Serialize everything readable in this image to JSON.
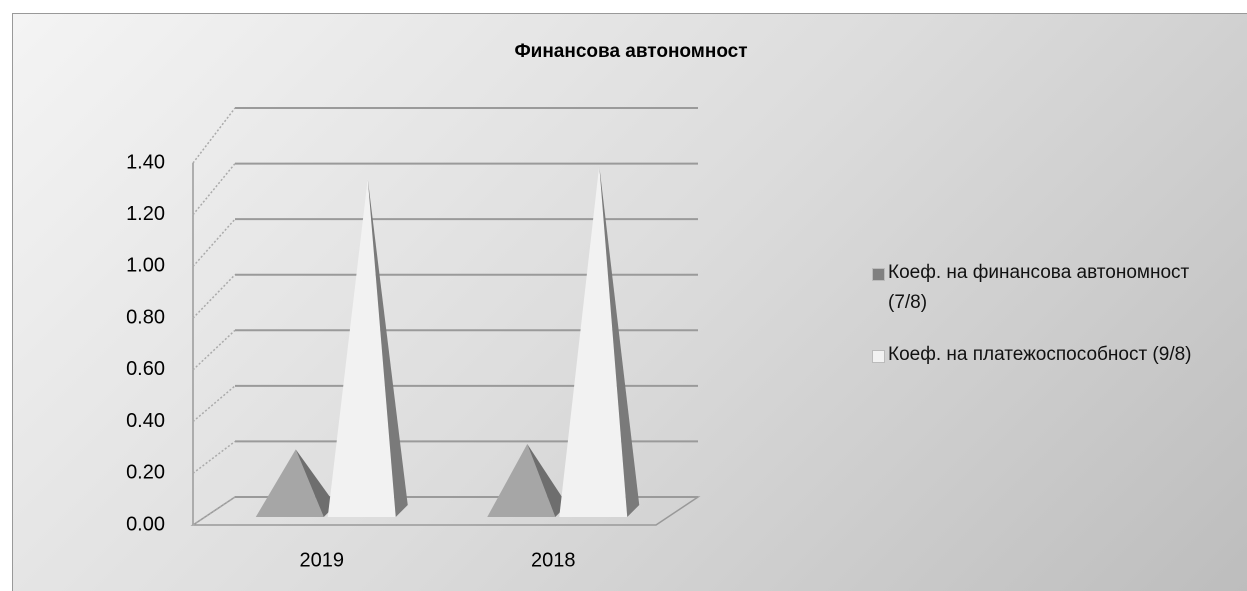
{
  "chart_data": {
    "type": "pyramid3d",
    "title": "Финансова автономност",
    "categories": [
      "2019",
      "2018"
    ],
    "series": [
      {
        "name": "Коеф. на финансова автономност (7/8)",
        "color": "#a6a6a6",
        "values": [
          0.23,
          0.25
        ]
      },
      {
        "name": "Коеф. на платежоспособност (9/8)",
        "color": "#f2f2f2",
        "values": [
          1.24,
          1.29
        ]
      }
    ],
    "ylim": [
      0,
      1.4
    ],
    "yticks": [
      {
        "value": 0,
        "label": "0.00"
      },
      {
        "value": 0.2,
        "label": "0.20"
      },
      {
        "value": 0.4,
        "label": "0.40"
      },
      {
        "value": 0.6,
        "label": "0.60"
      },
      {
        "value": 0.8,
        "label": "0.80"
      },
      {
        "value": 1.0,
        "label": "1.00"
      },
      {
        "value": 1.2,
        "label": "1.20"
      },
      {
        "value": 1.4,
        "label": "1.40"
      }
    ],
    "grid": true,
    "legend": "right"
  }
}
